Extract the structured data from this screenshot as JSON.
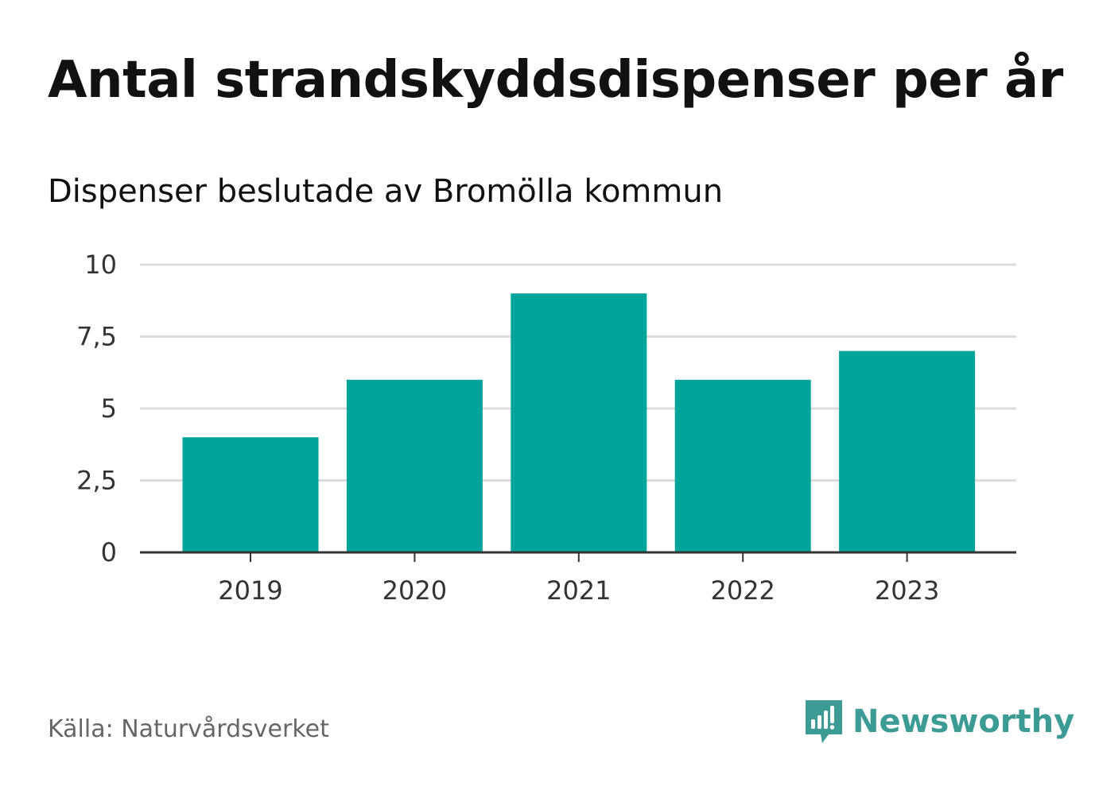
{
  "chart_data": {
    "type": "bar",
    "title": "Antal strandskyddsdispenser per år",
    "subtitle": "Dispenser beslutade av Bromölla kommun",
    "categories": [
      "2019",
      "2020",
      "2021",
      "2022",
      "2023"
    ],
    "values": [
      4,
      6,
      9,
      6,
      7
    ],
    "ylim": [
      0,
      10
    ],
    "yticks": [
      0,
      2.5,
      5,
      7.5,
      10
    ],
    "ytick_labels": [
      "0",
      "2,5",
      "5",
      "7,5",
      "10"
    ],
    "xlabel": "",
    "ylabel": "",
    "grid": true,
    "bar_color": "#00a49a",
    "gridline_color": "#dcdcdc",
    "axis_color": "#333333"
  },
  "footer": {
    "source": "Källa: Naturvårdsverket",
    "brand": "Newsworthy",
    "brand_color": "#3c9b94"
  }
}
